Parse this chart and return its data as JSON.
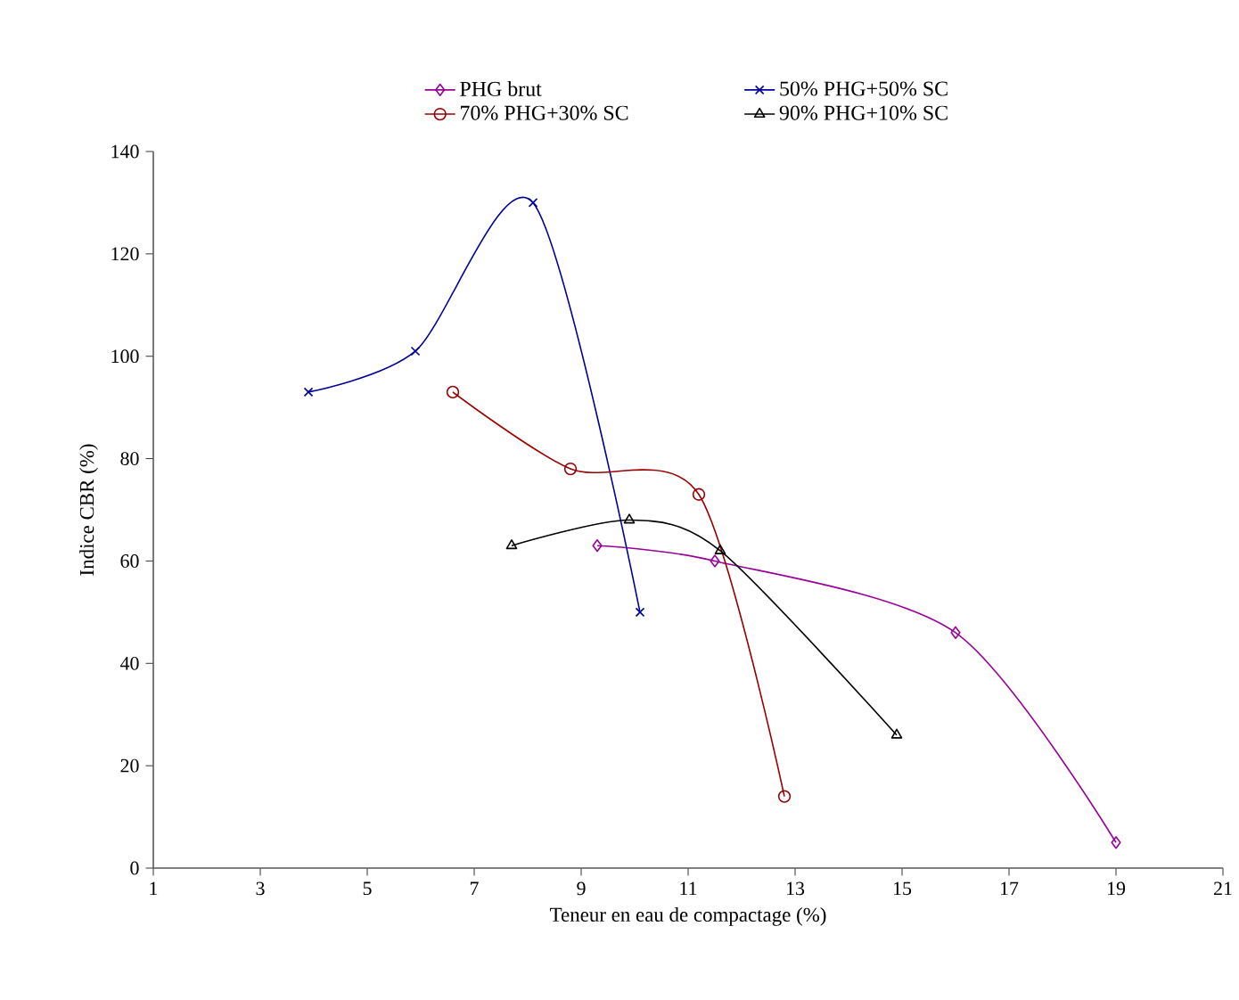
{
  "chart_data": {
    "type": "line",
    "xlabel": "Teneur en eau de compactage (%)",
    "ylabel": "Indice CBR (%)",
    "xlim": [
      1,
      21
    ],
    "xticks": [
      1,
      3,
      5,
      7,
      9,
      11,
      13,
      15,
      17,
      19,
      21
    ],
    "ylim": [
      0,
      140
    ],
    "yticks": [
      0,
      20,
      40,
      60,
      80,
      100,
      120,
      140
    ],
    "legend": "top",
    "grid": false,
    "line_style": "solid",
    "series": [
      {
        "name": "PHG brut",
        "color": "#990099",
        "marker": "diamond",
        "x": [
          9.3,
          11.5,
          16.0,
          19.0
        ],
        "values": [
          63,
          60,
          46,
          5
        ]
      },
      {
        "name": "50% PHG+50% SC",
        "color": "#000099",
        "marker": "cross",
        "x": [
          3.9,
          5.9,
          8.1,
          10.1
        ],
        "values": [
          93,
          101,
          130,
          50
        ]
      },
      {
        "name": "70% PHG+30% SC",
        "color": "#990000",
        "marker": "circle",
        "x": [
          6.6,
          8.8,
          11.2,
          12.8
        ],
        "values": [
          93,
          78,
          73,
          14
        ]
      },
      {
        "name": "90% PHG+10% SC",
        "color": "#000000",
        "marker": "triangle",
        "x": [
          7.7,
          9.9,
          11.6,
          14.9
        ],
        "values": [
          63,
          68,
          62,
          26
        ]
      }
    ]
  }
}
